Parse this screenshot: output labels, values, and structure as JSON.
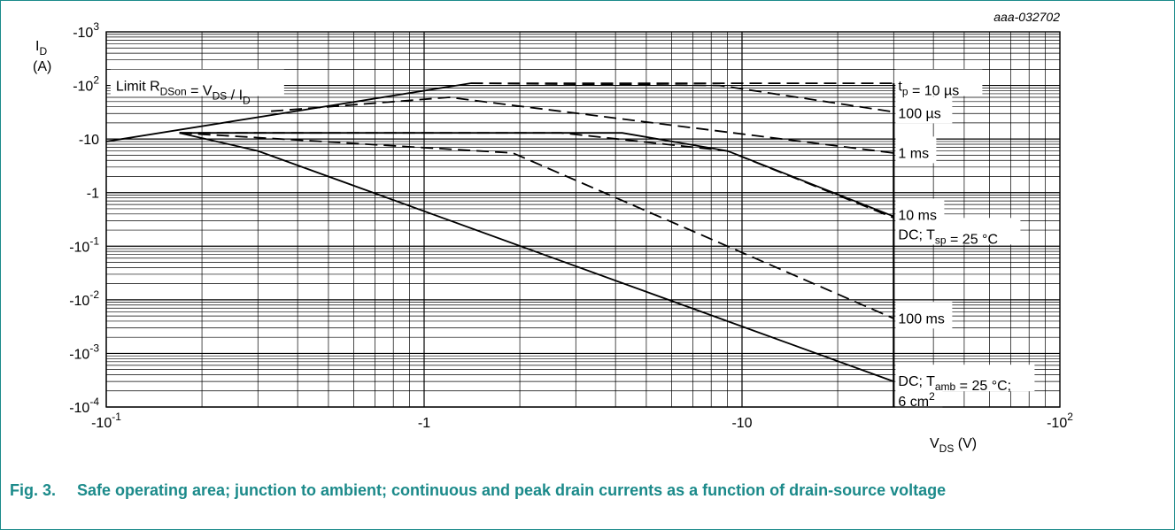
{
  "chart_data": {
    "type": "line",
    "title": "",
    "figure_code": "aaa-032702",
    "x_scale": "log",
    "y_scale": "log",
    "xlim": [
      -0.1,
      -100
    ],
    "ylim": [
      -0.0001,
      -1000
    ],
    "xlabel": {
      "main": "V",
      "sub": "DS",
      "unit": " (V)"
    },
    "ylabel": {
      "main": "I",
      "sub": "D",
      "unit": "(A)"
    },
    "x_ticks": [
      {
        "value": -0.1,
        "label": "-10",
        "sup": "-1"
      },
      {
        "value": -1,
        "label": "-1",
        "sup": ""
      },
      {
        "value": -10,
        "label": "-10",
        "sup": ""
      },
      {
        "value": -100,
        "label": "-10",
        "sup": "2"
      }
    ],
    "y_ticks": [
      {
        "value": -1000,
        "label": "-10",
        "sup": "3"
      },
      {
        "value": -100,
        "label": "-10",
        "sup": "2"
      },
      {
        "value": -10,
        "label": "-10",
        "sup": ""
      },
      {
        "value": -1,
        "label": "-1",
        "sup": ""
      },
      {
        "value": -0.1,
        "label": "-10",
        "sup": "-1"
      },
      {
        "value": -0.01,
        "label": "-10",
        "sup": "-2"
      },
      {
        "value": -0.001,
        "label": "-10",
        "sup": "-3"
      },
      {
        "value": -0.0001,
        "label": "-10",
        "sup": "-4"
      }
    ],
    "grid": true,
    "series": [
      {
        "id": "rdson-limit",
        "style": "solid",
        "x": [
          -0.1,
          -1.4
        ],
        "y": [
          -9,
          -110
        ]
      },
      {
        "id": "tp-10us",
        "style": "dashed",
        "x": [
          -1.4,
          -30
        ],
        "y": [
          -110,
          -110
        ]
      },
      {
        "id": "tp-100us",
        "style": "dashed",
        "x": [
          -1.4,
          -8.5,
          -30
        ],
        "y": [
          -110,
          -100,
          -32
        ]
      },
      {
        "id": "tp-1ms",
        "style": "dashed",
        "x": [
          -0.33,
          -1.2,
          -30
        ],
        "y": [
          -33,
          -60,
          -5.5
        ]
      },
      {
        "id": "tp-10ms",
        "style": "dashed",
        "x": [
          -0.17,
          -2.7,
          -9,
          -30
        ],
        "y": [
          -13,
          -13,
          -6,
          -0.34
        ]
      },
      {
        "id": "dc-tsp",
        "style": "solid",
        "x": [
          -0.17,
          -4.2,
          -9,
          -30
        ],
        "y": [
          -13,
          -13,
          -6,
          -0.36
        ]
      },
      {
        "id": "tp-100ms",
        "style": "dashed",
        "x": [
          -0.17,
          -1.9,
          -30
        ],
        "y": [
          -13,
          -5.5,
          -0.0045
        ]
      },
      {
        "id": "dc-tamb",
        "style": "solid",
        "x": [
          -0.17,
          -0.3,
          -30
        ],
        "y": [
          -13,
          -6,
          -0.0003
        ]
      },
      {
        "id": "vds-limit",
        "style": "solid",
        "x": [
          -30,
          -30
        ],
        "y": [
          -0.0001,
          -110
        ]
      }
    ],
    "annotations": [
      {
        "id": "rdson-label",
        "x": -0.27,
        "y": -100,
        "parts": [
          {
            "t": "Limit R",
            "s": "n"
          },
          {
            "t": "DSon",
            "s": "sub"
          },
          {
            "t": " = V",
            "s": "n"
          },
          {
            "t": "DS",
            "s": "sub"
          },
          {
            "t": " / I",
            "s": "n"
          },
          {
            "t": "D",
            "s": "sub"
          }
        ]
      },
      {
        "id": "label-10us",
        "x": -31,
        "y": -100,
        "parts": [
          {
            "t": "t",
            "s": "n"
          },
          {
            "t": "p",
            "s": "sub"
          },
          {
            "t": " = 10 µs",
            "s": "n"
          }
        ]
      },
      {
        "id": "label-100us",
        "x": -31,
        "y": -31,
        "parts": [
          {
            "t": "100 µs",
            "s": "n"
          }
        ]
      },
      {
        "id": "label-1ms",
        "x": -31,
        "y": -5.6,
        "parts": [
          {
            "t": "1 ms",
            "s": "n"
          }
        ]
      },
      {
        "id": "label-10ms",
        "x": -31,
        "y": -0.39,
        "parts": [
          {
            "t": "10 ms",
            "s": "n"
          }
        ]
      },
      {
        "id": "label-dc-tsp",
        "x": -31,
        "y": -0.17,
        "parts": [
          {
            "t": "DC; T",
            "s": "n"
          },
          {
            "t": "sp",
            "s": "sub"
          },
          {
            "t": " = 25 °C",
            "s": "n"
          }
        ]
      },
      {
        "id": "label-100ms",
        "x": -31,
        "y": -0.0046,
        "parts": [
          {
            "t": "100 ms",
            "s": "n"
          }
        ]
      },
      {
        "id": "label-dc-tamb-1",
        "x": -31,
        "y": -0.00031,
        "parts": [
          {
            "t": "DC; T",
            "s": "n"
          },
          {
            "t": "amb",
            "s": "sub"
          },
          {
            "t": " = 25 °C;",
            "s": "n"
          }
        ]
      },
      {
        "id": "label-dc-tamb-2",
        "x": -31,
        "y": -0.00013,
        "parts": [
          {
            "t": "6 cm",
            "s": "n"
          },
          {
            "t": "2",
            "s": "sup"
          }
        ]
      }
    ]
  },
  "caption": {
    "number": "Fig. 3.",
    "text": "Safe operating area; junction to ambient; continuous and peak drain currents as a function of drain-source voltage"
  }
}
